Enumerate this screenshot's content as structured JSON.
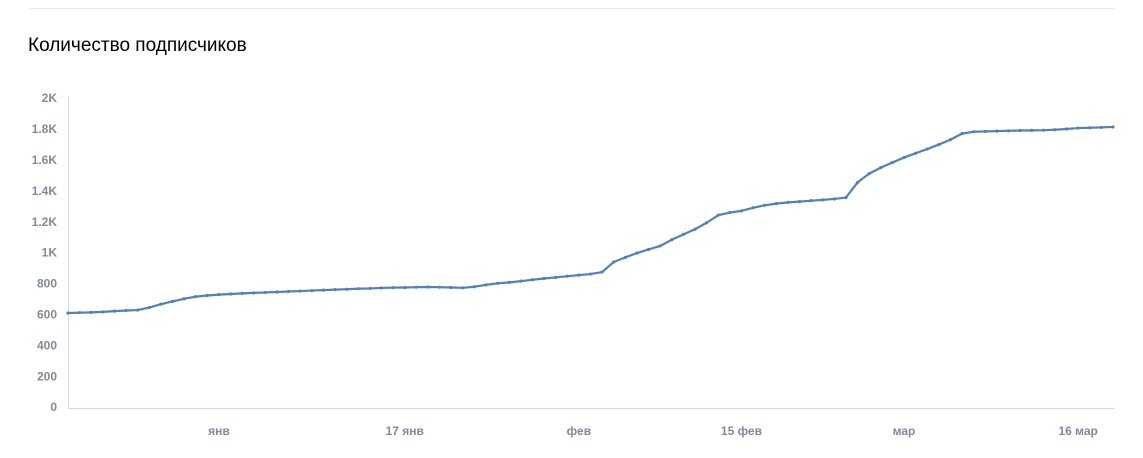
{
  "chart_data": {
    "type": "line",
    "title": "Количество подписчиков",
    "categories": [
      null,
      null,
      null,
      null,
      null,
      null,
      null,
      null,
      null,
      null,
      null,
      null,
      null,
      "янв",
      null,
      null,
      null,
      null,
      null,
      null,
      null,
      null,
      null,
      null,
      null,
      null,
      null,
      null,
      null,
      "17 янв",
      null,
      null,
      null,
      null,
      null,
      null,
      null,
      null,
      null,
      null,
      null,
      null,
      null,
      null,
      "фев",
      null,
      null,
      null,
      null,
      null,
      null,
      null,
      null,
      null,
      null,
      null,
      null,
      null,
      "15 фев",
      null,
      null,
      null,
      null,
      null,
      null,
      null,
      null,
      null,
      null,
      null,
      null,
      null,
      "мар",
      null,
      null,
      null,
      null,
      null,
      null,
      null,
      null,
      null,
      null,
      null,
      null,
      null,
      null,
      "16 мар",
      null,
      null,
      null
    ],
    "values": [
      615,
      617,
      619,
      622,
      627,
      631,
      634,
      650,
      672,
      690,
      707,
      721,
      728,
      734,
      738,
      742,
      745,
      748,
      751,
      754,
      757,
      760,
      763,
      766,
      769,
      772,
      774,
      777,
      779,
      780,
      782,
      783,
      782,
      780,
      778,
      785,
      797,
      807,
      813,
      821,
      830,
      838,
      845,
      853,
      860,
      867,
      880,
      945,
      975,
      1003,
      1026,
      1049,
      1089,
      1124,
      1157,
      1199,
      1248,
      1265,
      1276,
      1296,
      1312,
      1323,
      1331,
      1336,
      1342,
      1347,
      1353,
      1362,
      1460,
      1517,
      1556,
      1589,
      1621,
      1649,
      1676,
      1705,
      1737,
      1776,
      1788,
      1790,
      1792,
      1794,
      1796,
      1797,
      1798,
      1801,
      1806,
      1812,
      1814,
      1816,
      1819
    ],
    "color": "#5181b8",
    "ylim": [
      0,
      2000
    ],
    "yticks": [
      0,
      200,
      400,
      600,
      800,
      {
        "value": 1000,
        "label": "1K"
      },
      {
        "value": 1200,
        "label": "1.2K"
      },
      {
        "value": 1400,
        "label": "1.4K"
      },
      {
        "value": 1600,
        "label": "1.6K"
      },
      {
        "value": 1800,
        "label": "1.8K"
      },
      {
        "value": 2000,
        "label": "2K"
      }
    ],
    "grid": false
  }
}
